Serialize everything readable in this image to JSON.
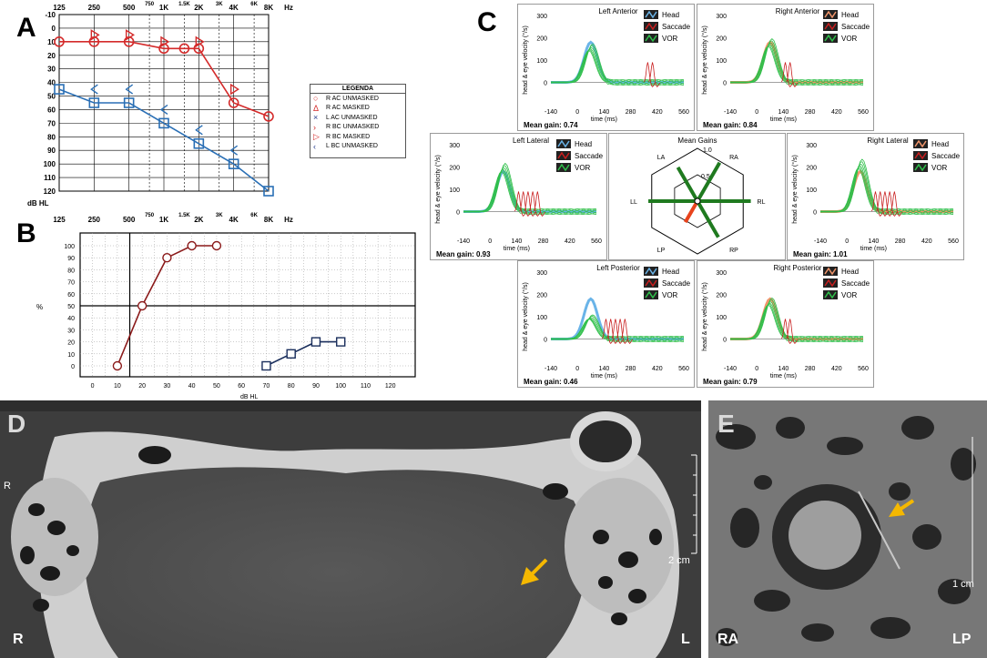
{
  "panel_letters": {
    "a": "A",
    "b": "B",
    "c": "C",
    "d": "D",
    "e": "E"
  },
  "audiogram": {
    "freq_top": [
      "125",
      "250",
      "500",
      "750",
      "1K",
      "1.5K",
      "2K",
      "3K",
      "4K",
      "6K",
      "8K",
      "Hz"
    ],
    "freq_bottom": [
      "125",
      "250",
      "500",
      "750",
      "1K",
      "1.5K",
      "2K",
      "3K",
      "4K",
      "6K",
      "8K",
      "Hz"
    ],
    "db_ticks": [
      "-10",
      "0",
      "10",
      "20",
      "30",
      "40",
      "50",
      "60",
      "70",
      "80",
      "90",
      "100",
      "110",
      "120"
    ],
    "db_unit": "dB HL",
    "series": [
      {
        "name": "R AC UNMASKED",
        "color": "#d42b2b",
        "freq": [
          "125",
          "250",
          "500",
          "1K",
          "1.5K",
          "2K",
          "4K",
          "8K"
        ],
        "db": [
          10,
          10,
          10,
          15,
          15,
          15,
          55,
          65
        ]
      },
      {
        "name": "R BC MASKED",
        "color": "#d42b2b",
        "freq": [
          "250",
          "500",
          "1K",
          "2K",
          "4K"
        ],
        "db": [
          5,
          5,
          10,
          10,
          45
        ]
      },
      {
        "name": "L AC (square)",
        "color": "#2a6fb5",
        "freq": [
          "125",
          "250",
          "500",
          "1K",
          "2K",
          "4K",
          "8K"
        ],
        "db": [
          45,
          55,
          55,
          70,
          85,
          100,
          120
        ]
      },
      {
        "name": "L BC UNMASKED",
        "color": "#2a6fb5",
        "freq": [
          "250",
          "500",
          "1K",
          "2K",
          "4K"
        ],
        "db": [
          45,
          45,
          60,
          75,
          90
        ]
      }
    ]
  },
  "legend": {
    "title": "LEGENDA",
    "items": [
      {
        "symbol": "○",
        "color": "#d42b2b",
        "label": "R AC UNMASKED"
      },
      {
        "symbol": "Δ",
        "color": "#d42b2b",
        "label": "R AC MASKED"
      },
      {
        "symbol": "×",
        "color": "#2a3f8f",
        "label": "L AC UNMASKED"
      },
      {
        "symbol": "›",
        "color": "#d42b2b",
        "label": "R BC UNMASKED"
      },
      {
        "symbol": "▷",
        "color": "#d42b2b",
        "label": "R BC MASKED"
      },
      {
        "symbol": "‹",
        "color": "#2a3f8f",
        "label": "L BC UNMASKED"
      }
    ]
  },
  "speech": {
    "y_ticks": [
      "100",
      "90",
      "80",
      "70",
      "60",
      "50",
      "40",
      "30",
      "20",
      "10",
      "0"
    ],
    "y_unit": "%",
    "x_ticks": [
      "0",
      "10",
      "20",
      "30",
      "40",
      "50",
      "60",
      "70",
      "80",
      "90",
      "100",
      "110",
      "120"
    ],
    "x_unit": "dB HL",
    "right_curve": {
      "color": "#8b1a1a",
      "x": [
        10,
        20,
        30,
        40,
        50
      ],
      "y": [
        0,
        50,
        90,
        100,
        100
      ]
    },
    "left_curve": {
      "color": "#1a2e5c",
      "x": [
        70,
        80,
        90,
        100
      ],
      "y": [
        0,
        10,
        20,
        20
      ]
    }
  },
  "vhit": {
    "y_axis_label": "head & eye velocity (°/s)",
    "x_axis_label": "time (ms)",
    "x_ticks": [
      "-140",
      "0",
      "140",
      "280",
      "420",
      "560"
    ],
    "y_ticks": [
      "300",
      "200",
      "100",
      "0"
    ],
    "legend_saccade": "Saccade",
    "legend_vor": "VOR",
    "legend_head": "Head",
    "panels": [
      {
        "key": "la",
        "title": "Left Anterior",
        "mean_gain": "Mean gain: 0.74",
        "head_color": "#6ab4e8"
      },
      {
        "key": "ra",
        "title": "Right Anterior",
        "mean_gain": "Mean gain: 0.84",
        "head_color": "#f0956b"
      },
      {
        "key": "ll",
        "title": "Left Lateral",
        "mean_gain": "Mean gain: 0.93",
        "head_color": "#6ab4e8"
      },
      {
        "key": "rl",
        "title": "Right Lateral",
        "mean_gain": "Mean gain: 1.01",
        "head_color": "#f0956b"
      },
      {
        "key": "lp",
        "title": "Left Posterior",
        "mean_gain": "Mean gain: 0.46",
        "head_color": "#6ab4e8"
      },
      {
        "key": "rp",
        "title": "Right Posterior",
        "mean_gain": "Mean gain: 0.79",
        "head_color": "#f0956b"
      }
    ],
    "polar": {
      "title": "Mean Gains",
      "ring_labels": [
        "1.0",
        "0.5"
      ],
      "axes": [
        "LA",
        "RA",
        "LL",
        "RL",
        "LP",
        "RP"
      ],
      "gains": {
        "la": 0.74,
        "ra": 0.84,
        "ll": 0.93,
        "rl": 1.01,
        "lp": 0.46,
        "rp": 0.79
      }
    }
  },
  "ct_axial": {
    "left_label": "R",
    "right_label": "L",
    "small_label": "R",
    "scale": "2 cm"
  },
  "ct_oblique": {
    "left_label": "RA",
    "right_label": "LP",
    "scale": "1 cm"
  },
  "colors": {
    "saccade": "#c81e1e",
    "vor": "#2fbf4a",
    "arrow": "#f5b800"
  }
}
